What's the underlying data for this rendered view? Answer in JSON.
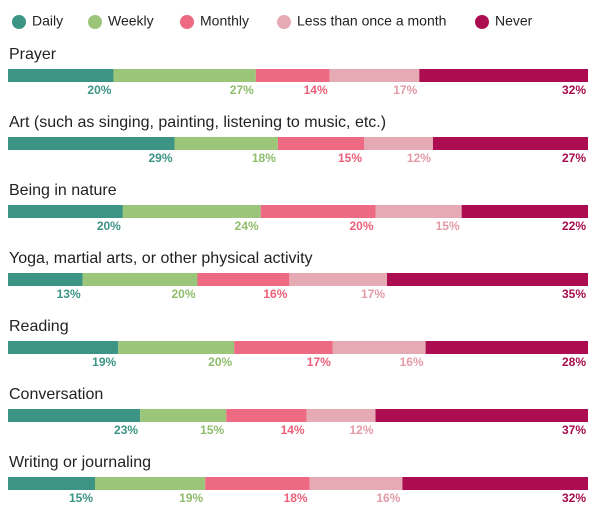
{
  "chart_data": {
    "type": "stacked-bar-100",
    "categories": [
      "Prayer",
      "Art (such as singing, painting, listening to music, etc.)",
      "Being in nature",
      "Yoga, martial arts, or other physical activity",
      "Reading",
      "Conversation",
      "Writing or journaling"
    ],
    "series": [
      {
        "name": "Daily",
        "color": "#3b9484",
        "label_color": "#3b9484",
        "values": [
          20,
          29,
          20,
          13,
          19,
          23,
          15
        ],
        "value_labels": [
          "20%",
          "29%",
          "20%",
          "13%",
          "19%",
          "23%",
          "15%"
        ]
      },
      {
        "name": "Weekly",
        "color": "#9bc67a",
        "label_color": "#8fbd6c",
        "values": [
          27,
          18,
          24,
          20,
          20,
          15,
          19
        ],
        "value_labels": [
          "27%",
          "18%",
          "24%",
          "20%",
          "20%",
          "15%",
          "19%"
        ]
      },
      {
        "name": "Monthly",
        "color": "#ee6a82",
        "label_color": "#ec5f78",
        "values": [
          14,
          15,
          20,
          16,
          17,
          14,
          18
        ],
        "value_labels": [
          "14%",
          "15%",
          "20%",
          "16%",
          "17%",
          "14%",
          "18%"
        ]
      },
      {
        "name": "Less than once a month",
        "color": "#e5aab4",
        "label_color": "#e39ba7",
        "values": [
          17,
          12,
          15,
          17,
          16,
          12,
          16
        ],
        "value_labels": [
          "17%",
          "12%",
          "15%",
          "17%",
          "16%",
          "12%",
          "16%"
        ]
      },
      {
        "name": "Never",
        "color": "#ab0d50",
        "label_color": "#a50c4c",
        "values": [
          32,
          27,
          22,
          35,
          28,
          37,
          32
        ],
        "value_labels": [
          "32%",
          "27%",
          "22%",
          "35%",
          "28%",
          "37%",
          "32%"
        ]
      }
    ]
  }
}
